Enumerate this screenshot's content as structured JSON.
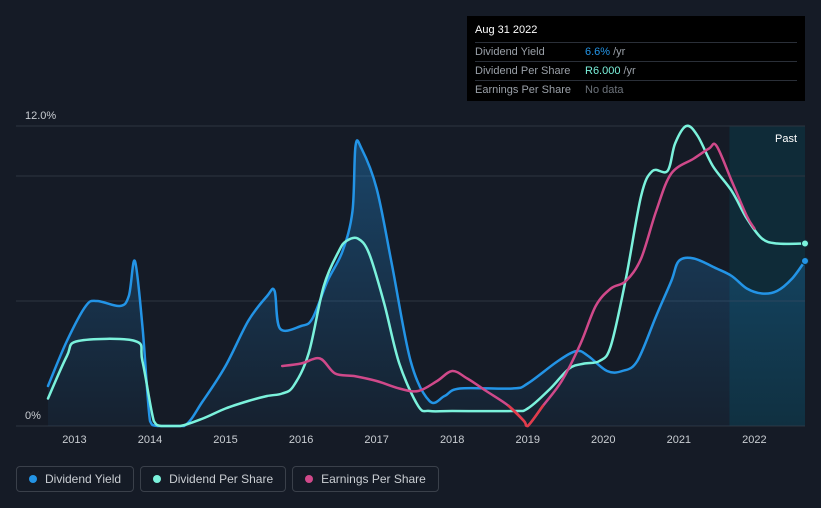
{
  "tooltip": {
    "date": "Aug 31 2022",
    "rows": [
      {
        "label": "Dividend Yield",
        "value": "6.6%",
        "unit": "/yr"
      },
      {
        "label": "Dividend Per Share",
        "value": "R6.000",
        "unit": "/yr"
      },
      {
        "label": "Earnings Per Share",
        "value": "No data",
        "unit": ""
      }
    ]
  },
  "legend": [
    {
      "label": "Dividend Yield",
      "color": "#2394e6"
    },
    {
      "label": "Dividend Per Share",
      "color": "#7bf2dc"
    },
    {
      "label": "Earnings Per Share",
      "color": "#d0498a"
    }
  ],
  "chart_data": {
    "type": "line",
    "past_label": "Past",
    "past_start_x": 2021.67,
    "xlim": [
      2012.65,
      2022.67
    ],
    "ylim": [
      0,
      12
    ],
    "y_tick_labels": [
      {
        "value": 12,
        "label": "12.0%"
      },
      {
        "value": 0,
        "label": "0%"
      }
    ],
    "gridlines": [
      12,
      10,
      5,
      0
    ],
    "x_ticks": [
      2013,
      2014,
      2015,
      2016,
      2017,
      2018,
      2019,
      2020,
      2021,
      2022
    ],
    "series": [
      {
        "name": "Dividend Yield",
        "color": "#2394e6",
        "fill": true,
        "points": [
          [
            2012.65,
            1.6
          ],
          [
            2012.9,
            3.4
          ],
          [
            2013.15,
            4.8
          ],
          [
            2013.3,
            5.0
          ],
          [
            2013.6,
            4.8
          ],
          [
            2013.72,
            5.2
          ],
          [
            2013.8,
            6.6
          ],
          [
            2013.9,
            4.0
          ],
          [
            2014.0,
            0.2
          ],
          [
            2014.1,
            0.0
          ],
          [
            2014.45,
            0.0
          ],
          [
            2014.7,
            1.0
          ],
          [
            2015.0,
            2.4
          ],
          [
            2015.3,
            4.2
          ],
          [
            2015.55,
            5.2
          ],
          [
            2015.65,
            5.4
          ],
          [
            2015.72,
            3.9
          ],
          [
            2016.0,
            4.0
          ],
          [
            2016.15,
            4.3
          ],
          [
            2016.35,
            5.8
          ],
          [
            2016.55,
            7.0
          ],
          [
            2016.68,
            8.6
          ],
          [
            2016.72,
            11.2
          ],
          [
            2016.8,
            11.1
          ],
          [
            2017.0,
            9.5
          ],
          [
            2017.2,
            6.5
          ],
          [
            2017.45,
            2.6
          ],
          [
            2017.7,
            1.0
          ],
          [
            2017.9,
            1.2
          ],
          [
            2018.1,
            1.5
          ],
          [
            2018.8,
            1.5
          ],
          [
            2019.0,
            1.7
          ],
          [
            2019.4,
            2.6
          ],
          [
            2019.65,
            3.0
          ],
          [
            2019.8,
            2.8
          ],
          [
            2020.05,
            2.2
          ],
          [
            2020.25,
            2.2
          ],
          [
            2020.45,
            2.6
          ],
          [
            2020.7,
            4.4
          ],
          [
            2020.9,
            5.8
          ],
          [
            2021.0,
            6.6
          ],
          [
            2021.2,
            6.7
          ],
          [
            2021.5,
            6.3
          ],
          [
            2021.7,
            6.0
          ],
          [
            2021.9,
            5.5
          ],
          [
            2022.1,
            5.3
          ],
          [
            2022.3,
            5.4
          ],
          [
            2022.5,
            5.9
          ],
          [
            2022.67,
            6.6
          ]
        ]
      },
      {
        "name": "Dividend Per Share",
        "color": "#7bf2dc",
        "fill": false,
        "points": [
          [
            2012.65,
            1.1
          ],
          [
            2012.9,
            2.8
          ],
          [
            2013.05,
            3.4
          ],
          [
            2013.8,
            3.4
          ],
          [
            2013.9,
            2.6
          ],
          [
            2014.05,
            0.2
          ],
          [
            2014.15,
            0.0
          ],
          [
            2014.4,
            0.0
          ],
          [
            2014.7,
            0.3
          ],
          [
            2015.0,
            0.7
          ],
          [
            2015.3,
            1.0
          ],
          [
            2015.55,
            1.2
          ],
          [
            2015.75,
            1.3
          ],
          [
            2015.9,
            1.6
          ],
          [
            2016.1,
            2.9
          ],
          [
            2016.3,
            5.6
          ],
          [
            2016.5,
            7.0
          ],
          [
            2016.6,
            7.4
          ],
          [
            2016.75,
            7.5
          ],
          [
            2016.9,
            6.9
          ],
          [
            2017.1,
            4.9
          ],
          [
            2017.3,
            2.5
          ],
          [
            2017.55,
            0.8
          ],
          [
            2017.7,
            0.6
          ],
          [
            2018.0,
            0.6
          ],
          [
            2018.8,
            0.6
          ],
          [
            2019.0,
            0.7
          ],
          [
            2019.3,
            1.5
          ],
          [
            2019.55,
            2.3
          ],
          [
            2019.75,
            2.5
          ],
          [
            2019.95,
            2.6
          ],
          [
            2020.1,
            3.2
          ],
          [
            2020.3,
            5.9
          ],
          [
            2020.5,
            9.2
          ],
          [
            2020.65,
            10.2
          ],
          [
            2020.85,
            10.2
          ],
          [
            2020.95,
            11.3
          ],
          [
            2021.1,
            12.0
          ],
          [
            2021.25,
            11.6
          ],
          [
            2021.45,
            10.4
          ],
          [
            2021.7,
            9.4
          ],
          [
            2021.9,
            8.3
          ],
          [
            2022.1,
            7.5
          ],
          [
            2022.3,
            7.3
          ],
          [
            2022.67,
            7.3
          ]
        ]
      },
      {
        "name": "Earnings Per Share",
        "color": "#d0498a",
        "negative_color": "#e23c4a",
        "fill": false,
        "points": [
          [
            2015.75,
            2.4
          ],
          [
            2016.0,
            2.5
          ],
          [
            2016.25,
            2.7
          ],
          [
            2016.45,
            2.1
          ],
          [
            2016.7,
            2.0
          ],
          [
            2017.0,
            1.8
          ],
          [
            2017.3,
            1.5
          ],
          [
            2017.55,
            1.4
          ],
          [
            2017.8,
            1.8
          ],
          [
            2018.0,
            2.2
          ],
          [
            2018.2,
            1.9
          ],
          [
            2018.45,
            1.4
          ],
          [
            2018.75,
            0.8
          ],
          [
            2018.95,
            0.2
          ],
          [
            2019.0,
            0.0
          ],
          [
            2019.2,
            0.8
          ],
          [
            2019.45,
            1.8
          ],
          [
            2019.7,
            3.3
          ],
          [
            2019.9,
            4.8
          ],
          [
            2020.1,
            5.5
          ],
          [
            2020.3,
            5.8
          ],
          [
            2020.5,
            6.7
          ],
          [
            2020.7,
            8.6
          ],
          [
            2020.9,
            10.1
          ],
          [
            2021.2,
            10.7
          ],
          [
            2021.4,
            11.1
          ],
          [
            2021.5,
            11.2
          ],
          [
            2021.7,
            9.8
          ],
          [
            2021.9,
            8.4
          ],
          [
            2022.0,
            7.9
          ]
        ]
      }
    ]
  }
}
